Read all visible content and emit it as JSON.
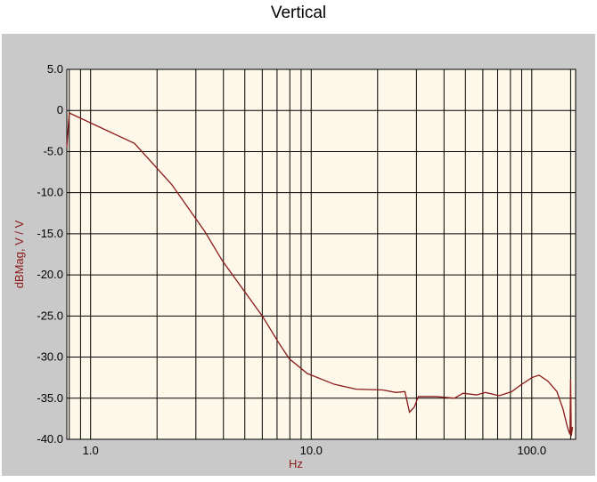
{
  "chart_data": {
    "type": "line",
    "title": "Vertical",
    "xlabel": "Hz",
    "ylabel": "dBMag, V / V",
    "log_x": true,
    "grid": true,
    "color": "#8b1a1a",
    "x": [
      0.78,
      0.8,
      1.58,
      2.33,
      3.29,
      3.96,
      6.0,
      7.1,
      7.95,
      9.6,
      12.7,
      16.0,
      21.1,
      24.2,
      26.6,
      27.9,
      29.3,
      30.6,
      36.9,
      44.6,
      48.8,
      56.2,
      61.7,
      71.1,
      81.1,
      89.0,
      100.0,
      107.8,
      118.0,
      130.0,
      138.5,
      145.0,
      147.0,
      149.0,
      150.0,
      151.0,
      153.0
    ],
    "values": [
      -4.5,
      -0.3,
      -4.0,
      -9.0,
      -14.7,
      -18.3,
      -25.0,
      -28.2,
      -30.2,
      -32.0,
      -33.3,
      -33.9,
      -34.0,
      -34.3,
      -34.2,
      -36.7,
      -36.1,
      -34.8,
      -34.8,
      -35.0,
      -34.4,
      -34.6,
      -34.3,
      -34.7,
      -34.2,
      -33.4,
      -32.5,
      -32.2,
      -32.9,
      -34.2,
      -36.3,
      -38.5,
      -39.0,
      -39.4,
      -32.7,
      -39.6,
      -38.5
    ],
    "xlim": [
      0.78,
      158
    ],
    "xticks": [
      {
        "value": 1,
        "label": "1.0"
      },
      {
        "value": 10,
        "label": "10.0"
      },
      {
        "value": 100,
        "label": "100.0"
      }
    ],
    "x_minor_ticks": [
      0.8,
      0.9,
      2,
      3,
      4,
      5,
      6,
      7,
      8,
      9,
      20,
      30,
      40,
      50,
      60,
      70,
      80,
      90,
      150
    ],
    "ylim": [
      -40,
      5
    ],
    "yticks": [
      {
        "value": 5,
        "label": "5.0"
      },
      0,
      {
        "value": -5,
        "label": "-5.0"
      },
      {
        "value": -10,
        "label": "-10.0"
      },
      {
        "value": -15,
        "label": "-15.0"
      },
      {
        "value": -20,
        "label": "-20.0"
      },
      {
        "value": -25,
        "label": "-25.0"
      },
      {
        "value": -30,
        "label": "-30.0"
      },
      {
        "value": -35,
        "label": "-35.0"
      },
      {
        "value": -40,
        "label": "-40.0"
      }
    ]
  }
}
